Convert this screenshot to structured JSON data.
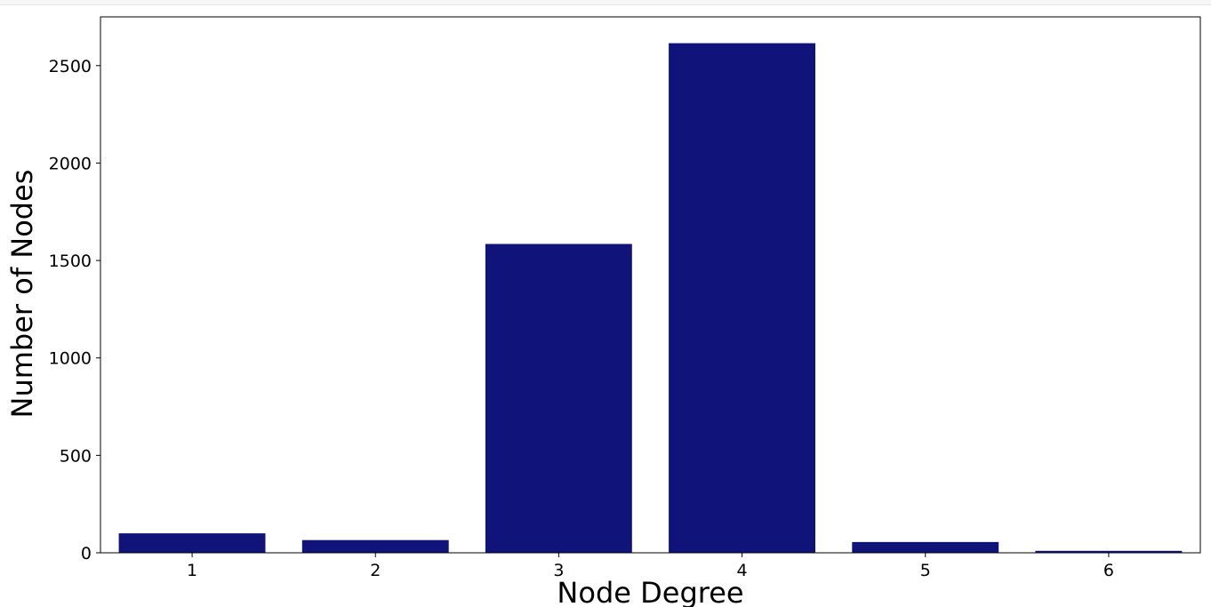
{
  "chart_data": {
    "type": "bar",
    "title": "",
    "xlabel": "Node Degree",
    "ylabel": "Number of Nodes",
    "categories": [
      "1",
      "2",
      "3",
      "4",
      "5",
      "6"
    ],
    "values": [
      100,
      65,
      1585,
      2615,
      55,
      10
    ],
    "ylim": [
      0,
      2750
    ],
    "yticks": [
      0,
      500,
      1000,
      1500,
      2000,
      2500
    ],
    "grid": false,
    "legend": "none",
    "bar_color": "#10137a"
  }
}
